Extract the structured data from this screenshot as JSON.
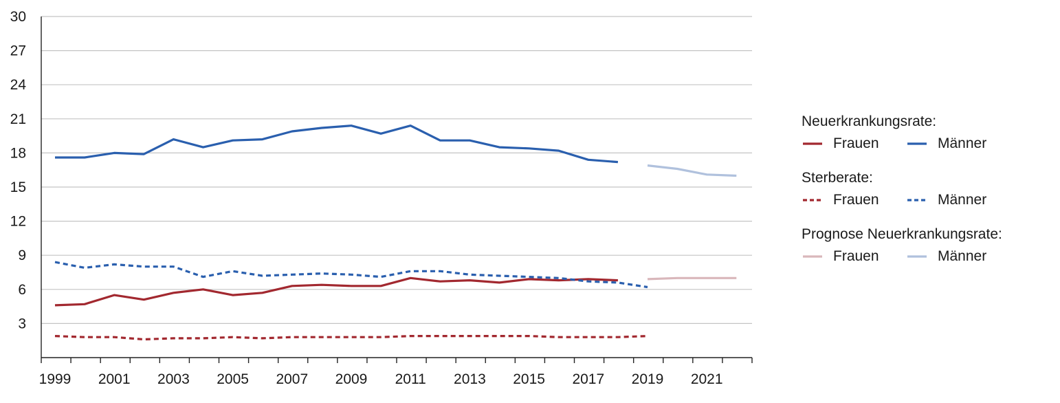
{
  "chart_data": {
    "type": "line",
    "title": "",
    "xlabel": "",
    "ylabel": "",
    "ylim": [
      0,
      30
    ],
    "yticks": [
      3,
      6,
      9,
      12,
      15,
      18,
      21,
      24,
      27,
      30
    ],
    "xticks": [
      1999,
      2001,
      2003,
      2005,
      2007,
      2009,
      2011,
      2013,
      2015,
      2017,
      2019,
      2021
    ],
    "xlim": [
      1999,
      2022
    ],
    "grid": true,
    "series": [
      {
        "group": "Neuerkrankungsrate:",
        "name": "Männer",
        "color": "#2a5fae",
        "dash": "solid",
        "x": [
          1999,
          2000,
          2001,
          2002,
          2003,
          2004,
          2005,
          2006,
          2007,
          2008,
          2009,
          2010,
          2011,
          2012,
          2013,
          2014,
          2015,
          2016,
          2017,
          2018
        ],
        "values": [
          17.6,
          17.6,
          18.0,
          17.9,
          19.2,
          18.5,
          19.1,
          19.2,
          19.9,
          20.2,
          20.4,
          19.7,
          20.4,
          19.1,
          19.1,
          18.5,
          18.4,
          18.2,
          17.4,
          17.2
        ]
      },
      {
        "group": "Neuerkrankungsrate:",
        "name": "Frauen",
        "color": "#a2282f",
        "dash": "solid",
        "x": [
          1999,
          2000,
          2001,
          2002,
          2003,
          2004,
          2005,
          2006,
          2007,
          2008,
          2009,
          2010,
          2011,
          2012,
          2013,
          2014,
          2015,
          2016,
          2017,
          2018
        ],
        "values": [
          4.6,
          4.7,
          5.5,
          5.1,
          5.7,
          6.0,
          5.5,
          5.7,
          6.3,
          6.4,
          6.3,
          6.3,
          7.0,
          6.7,
          6.8,
          6.6,
          6.9,
          6.8,
          6.9,
          6.8
        ]
      },
      {
        "group": "Sterberate:",
        "name": "Männer",
        "color": "#2a5fae",
        "dash": "dashed",
        "x": [
          1999,
          2000,
          2001,
          2002,
          2003,
          2004,
          2005,
          2006,
          2007,
          2008,
          2009,
          2010,
          2011,
          2012,
          2013,
          2014,
          2015,
          2016,
          2017,
          2018,
          2019
        ],
        "values": [
          8.4,
          7.9,
          8.2,
          8.0,
          8.0,
          7.1,
          7.6,
          7.2,
          7.3,
          7.4,
          7.3,
          7.1,
          7.6,
          7.6,
          7.3,
          7.2,
          7.1,
          7.0,
          6.7,
          6.6,
          6.2
        ]
      },
      {
        "group": "Sterberate:",
        "name": "Frauen",
        "color": "#a2282f",
        "dash": "dashed",
        "x": [
          1999,
          2000,
          2001,
          2002,
          2003,
          2004,
          2005,
          2006,
          2007,
          2008,
          2009,
          2010,
          2011,
          2012,
          2013,
          2014,
          2015,
          2016,
          2017,
          2018,
          2019
        ],
        "values": [
          1.9,
          1.8,
          1.8,
          1.6,
          1.7,
          1.7,
          1.8,
          1.7,
          1.8,
          1.8,
          1.8,
          1.8,
          1.9,
          1.9,
          1.9,
          1.9,
          1.9,
          1.8,
          1.8,
          1.8,
          1.9
        ]
      },
      {
        "group": "Prognose Neuerkrankungsrate:",
        "name": "Männer",
        "color": "#b0c1dd",
        "dash": "solid",
        "x": [
          2019,
          2020,
          2021,
          2022
        ],
        "values": [
          16.9,
          16.6,
          16.1,
          16.0
        ]
      },
      {
        "group": "Prognose Neuerkrankungsrate:",
        "name": "Frauen",
        "color": "#d9b7bb",
        "dash": "solid",
        "x": [
          2019,
          2020,
          2021,
          2022
        ],
        "values": [
          6.9,
          7.0,
          7.0,
          7.0
        ]
      }
    ],
    "legend": {
      "placement": "right",
      "groups": [
        {
          "heading": "Neuerkrankungsrate:",
          "items": [
            {
              "name": "Frauen",
              "color": "#a2282f",
              "dash": "solid"
            },
            {
              "name": "Männer",
              "color": "#2a5fae",
              "dash": "solid"
            }
          ]
        },
        {
          "heading": "Sterberate:",
          "items": [
            {
              "name": "Frauen",
              "color": "#a2282f",
              "dash": "dashed"
            },
            {
              "name": "Männer",
              "color": "#2a5fae",
              "dash": "dashed"
            }
          ]
        },
        {
          "heading": "Prognose Neuerkrankungsrate:",
          "items": [
            {
              "name": "Frauen",
              "color": "#d9b7bb",
              "dash": "solid"
            },
            {
              "name": "Männer",
              "color": "#b0c1dd",
              "dash": "solid"
            }
          ]
        }
      ]
    }
  }
}
